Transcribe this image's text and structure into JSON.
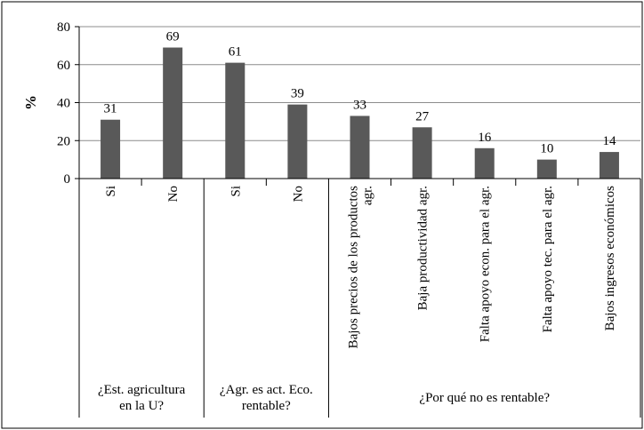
{
  "chart_data": {
    "type": "bar",
    "ylabel": "%",
    "ylim": [
      0,
      80
    ],
    "yticks": [
      0,
      20,
      40,
      60,
      80
    ],
    "grid": true,
    "bar_color": "#595959",
    "categories": [
      "Si",
      "No",
      "Si",
      "No",
      "Bajos precios de los productos agr.",
      "Baja productividad agr.",
      "Falta apoyo econ. para el agr.",
      "Falta apoyo tec. para el agr.",
      "Bajos ingresos económicos"
    ],
    "values": [
      31,
      69,
      61,
      39,
      33,
      27,
      16,
      10,
      14
    ],
    "groups": [
      {
        "label": "¿Est. agricultura en la U?",
        "lines": [
          "¿Est. agricultura",
          "en la U?"
        ],
        "start": 0,
        "end": 1
      },
      {
        "label": "¿Agr. es act. Eco. rentable?",
        "lines": [
          "¿Agr. es act. Eco.",
          "rentable?"
        ],
        "start": 2,
        "end": 3
      },
      {
        "label": "¿Por qué no es rentable?",
        "lines": [
          "¿Por qué no es rentable?"
        ],
        "start": 4,
        "end": 8
      }
    ]
  }
}
